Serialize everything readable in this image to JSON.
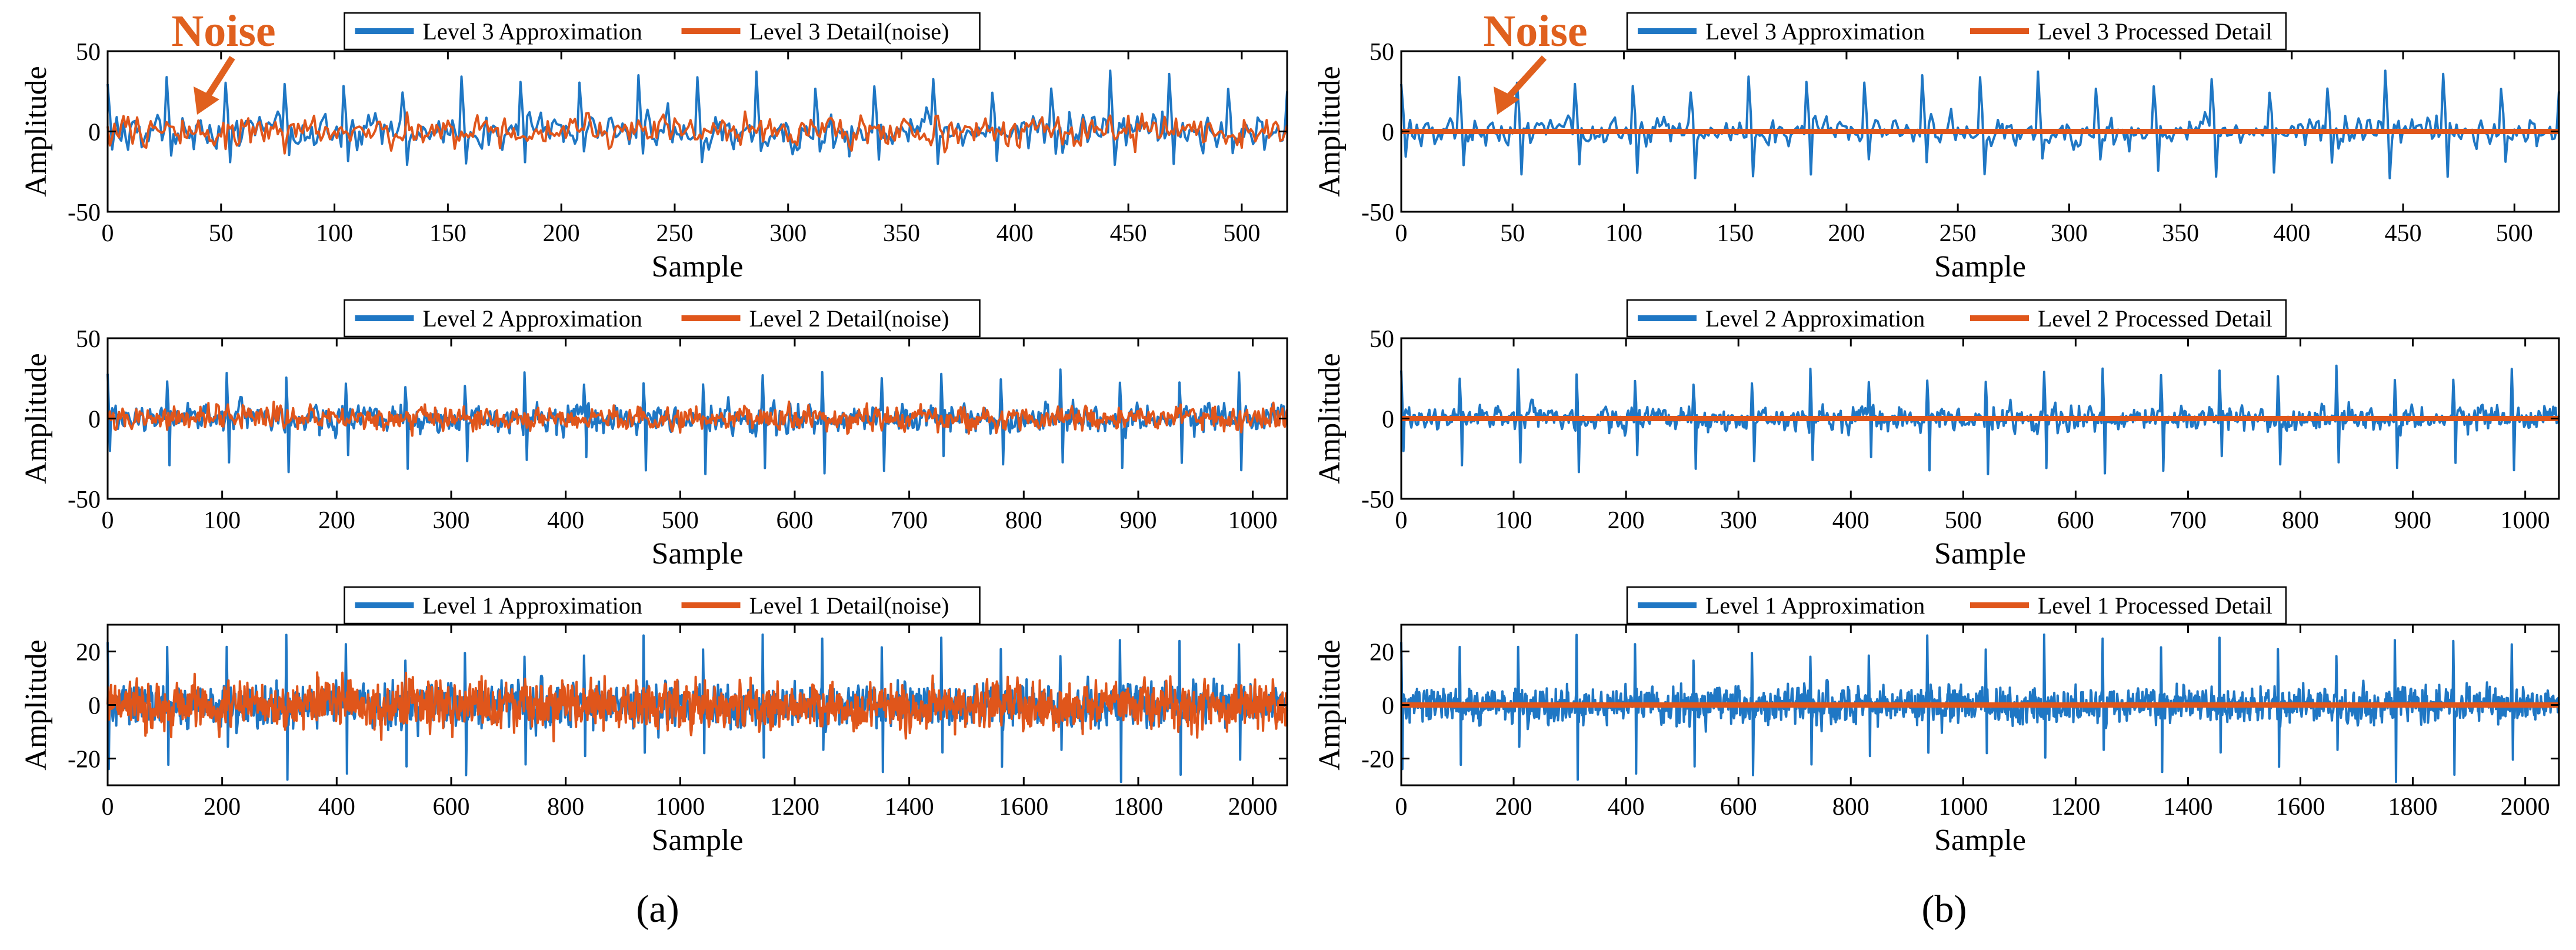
{
  "panel_labels": {
    "a": "(a)",
    "b": "(b)"
  },
  "annotation": {
    "text": "Noise",
    "color": "#e0601e"
  },
  "colors": {
    "approx": "#1f77c4",
    "detail": "#e0561b"
  },
  "chart_data": [
    {
      "type": "line",
      "id": "a3",
      "panel": "a",
      "row": 0,
      "title": "",
      "xlabel": "Sample",
      "ylabel": "Amplitude",
      "xlim": [
        0,
        520
      ],
      "ylim": [
        -50,
        50
      ],
      "xticks": [
        0,
        50,
        100,
        150,
        200,
        250,
        300,
        350,
        400,
        450,
        500
      ],
      "yticks": [
        -50,
        0,
        50
      ],
      "n": 520,
      "series": [
        {
          "name": "Level 3 Approximation",
          "color": "#1f77c4",
          "amp": 10,
          "spike": 32,
          "period": 26,
          "negspike": 20,
          "seed": 11,
          "flat": false
        },
        {
          "name": "Level 3 Detail(noise)",
          "color": "#e0561b",
          "amp": 9,
          "spike": 0,
          "period": 0,
          "negspike": 0,
          "seed": 23,
          "flat": false
        }
      ],
      "annotation": "Noise"
    },
    {
      "type": "line",
      "id": "b3",
      "panel": "b",
      "row": 0,
      "title": "",
      "xlabel": "Sample",
      "ylabel": "Amplitude",
      "xlim": [
        0,
        520
      ],
      "ylim": [
        -50,
        50
      ],
      "xticks": [
        0,
        50,
        100,
        150,
        200,
        250,
        300,
        350,
        400,
        450,
        500
      ],
      "yticks": [
        -50,
        0,
        50
      ],
      "n": 520,
      "series": [
        {
          "name": "Level 3 Approximation",
          "color": "#1f77c4",
          "amp": 8,
          "spike": 32,
          "period": 26,
          "negspike": 28,
          "seed": 11,
          "flat": false
        },
        {
          "name": "Level 3 Processed Detail",
          "color": "#e0561b",
          "amp": 0,
          "spike": 0,
          "period": 0,
          "negspike": 0,
          "seed": 0,
          "flat": true
        }
      ],
      "annotation": "Noise"
    },
    {
      "type": "line",
      "id": "a2",
      "panel": "a",
      "row": 1,
      "title": "",
      "xlabel": "Sample",
      "ylabel": "Amplitude",
      "xlim": [
        0,
        1030
      ],
      "ylim": [
        -50,
        50
      ],
      "xticks": [
        0,
        100,
        200,
        300,
        400,
        500,
        600,
        700,
        800,
        900,
        1000
      ],
      "yticks": [
        -50,
        0,
        50
      ],
      "n": 1030,
      "series": [
        {
          "name": "Level 2 Approximation",
          "color": "#1f77c4",
          "amp": 8,
          "spike": 26,
          "period": 52,
          "negspike": 35,
          "seed": 31,
          "flat": false
        },
        {
          "name": "Level 2 Detail(noise)",
          "color": "#e0561b",
          "amp": 7,
          "spike": 0,
          "period": 0,
          "negspike": 0,
          "seed": 47,
          "flat": false
        }
      ]
    },
    {
      "type": "line",
      "id": "b2",
      "panel": "b",
      "row": 1,
      "title": "",
      "xlabel": "Sample",
      "ylabel": "Amplitude",
      "xlim": [
        0,
        1030
      ],
      "ylim": [
        -50,
        50
      ],
      "xticks": [
        0,
        100,
        200,
        300,
        400,
        500,
        600,
        700,
        800,
        900,
        1000
      ],
      "yticks": [
        -50,
        0,
        50
      ],
      "n": 1030,
      "series": [
        {
          "name": "Level 2 Approximation",
          "color": "#1f77c4",
          "amp": 7,
          "spike": 28,
          "period": 52,
          "negspike": 35,
          "seed": 31,
          "flat": false
        },
        {
          "name": "Level 2 Processed Detail",
          "color": "#e0561b",
          "amp": 0,
          "spike": 0,
          "period": 0,
          "negspike": 0,
          "seed": 0,
          "flat": true
        }
      ]
    },
    {
      "type": "line",
      "id": "a1",
      "panel": "a",
      "row": 2,
      "title": "",
      "xlabel": "Sample",
      "ylabel": "Amplitude",
      "xlim": [
        0,
        2060
      ],
      "ylim": [
        -30,
        30
      ],
      "xticks": [
        0,
        200,
        400,
        600,
        800,
        1000,
        1200,
        1400,
        1600,
        1800,
        2000
      ],
      "yticks": [
        -20,
        0,
        20
      ],
      "n": 2060,
      "series": [
        {
          "name": "Level 1 Approximation",
          "color": "#1f77c4",
          "amp": 7,
          "spike": 22,
          "period": 104,
          "negspike": 28,
          "seed": 61,
          "flat": false
        },
        {
          "name": "Level 1 Detail(noise)",
          "color": "#e0561b",
          "amp": 8,
          "spike": 0,
          "period": 0,
          "negspike": 0,
          "seed": 73,
          "flat": false
        }
      ]
    },
    {
      "type": "line",
      "id": "b1",
      "panel": "b",
      "row": 2,
      "title": "",
      "xlabel": "Sample",
      "ylabel": "Amplitude",
      "xlim": [
        0,
        2060
      ],
      "ylim": [
        -30,
        30
      ],
      "xticks": [
        0,
        200,
        400,
        600,
        800,
        1000,
        1200,
        1400,
        1600,
        1800,
        2000
      ],
      "yticks": [
        -20,
        0,
        20
      ],
      "n": 2060,
      "series": [
        {
          "name": "Level 1 Approximation",
          "color": "#1f77c4",
          "amp": 6,
          "spike": 22,
          "period": 104,
          "negspike": 28,
          "seed": 61,
          "flat": false
        },
        {
          "name": "Level 1 Processed Detail",
          "color": "#e0561b",
          "amp": 0,
          "spike": 0,
          "period": 0,
          "negspike": 0,
          "seed": 0,
          "flat": true
        }
      ]
    }
  ]
}
